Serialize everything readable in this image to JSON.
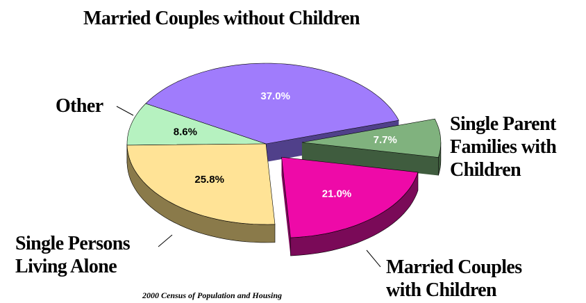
{
  "chart_data": {
    "type": "pie3d",
    "categories": [
      "Married Couples without Children",
      "Single Parent Families with Children",
      "Married Couples with Children",
      "Single Persons Living Alone",
      "Other"
    ],
    "values": [
      37.0,
      7.7,
      21.0,
      25.8,
      8.6
    ],
    "value_labels": [
      "37.0%",
      "7.7%",
      "21.0%",
      "25.8%",
      "8.6%"
    ],
    "colors": [
      "#a07cfc",
      "#80b27e",
      "#ee0aa8",
      "#ffe396",
      "#b6f2c0"
    ],
    "side_colors": [
      "#50408a",
      "#3f5c3e",
      "#7a0a58",
      "#8a7a4a",
      "#5a7a60"
    ],
    "label_colors": [
      "#ffffff",
      "#ffffff",
      "#ffffff",
      "#000000",
      "#000000"
    ],
    "source": "2000 Census of Population and Housing"
  }
}
